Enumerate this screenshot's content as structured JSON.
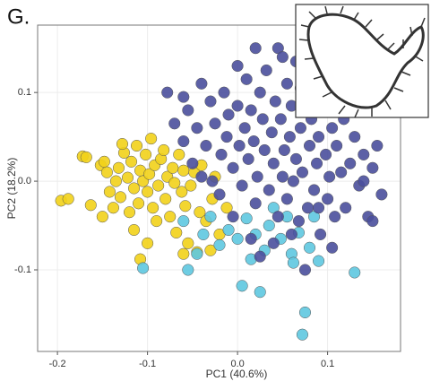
{
  "chart_data": {
    "type": "scatter",
    "title": "G.",
    "xlabel": "PC1 (40.6%)",
    "ylabel": "PC2 (18.2%)",
    "xlim": [
      -0.222,
      0.181
    ],
    "ylim": [
      -0.192,
      0.176
    ],
    "xticks": [
      -0.2,
      -0.1,
      {
        "value": 0,
        "label": "0.0"
      },
      0.1
    ],
    "yticks": [
      -0.1,
      {
        "value": 0,
        "label": "0.0"
      },
      0.1
    ],
    "grid": true,
    "series": [
      {
        "color": "#f2d21a",
        "x": [
          -0.196,
          -0.188,
          -0.172,
          -0.168,
          -0.163,
          -0.152,
          -0.148,
          -0.145,
          -0.142,
          -0.138,
          -0.135,
          -0.132,
          -0.13,
          -0.126,
          -0.122,
          -0.12,
          -0.118,
          -0.115,
          -0.112,
          -0.11,
          -0.108,
          -0.105,
          -0.102,
          -0.1,
          -0.098,
          -0.096,
          -0.094,
          -0.092,
          -0.09,
          -0.088,
          -0.085,
          -0.082,
          -0.08,
          -0.078,
          -0.075,
          -0.072,
          -0.07,
          -0.068,
          -0.065,
          -0.062,
          -0.06,
          -0.058,
          -0.055,
          -0.052,
          -0.048,
          -0.045,
          -0.042,
          -0.04,
          -0.035,
          -0.03,
          -0.028,
          -0.025,
          -0.108,
          -0.1,
          -0.115,
          -0.06,
          -0.15,
          -0.128,
          -0.02,
          -0.012
        ],
        "values": [
          -0.022,
          -0.02,
          0.028,
          0.027,
          -0.027,
          0.018,
          0.022,
          0.01,
          -0.012,
          -0.03,
          0,
          0.015,
          -0.018,
          0.032,
          0.004,
          -0.035,
          0.022,
          -0.008,
          0.04,
          -0.025,
          0.012,
          0,
          0.03,
          -0.012,
          0.008,
          0.048,
          -0.03,
          0.018,
          -0.045,
          -0.005,
          0.025,
          0.035,
          -0.02,
          0.005,
          -0.04,
          0.015,
          -0.002,
          -0.058,
          0.03,
          -0.012,
          0.012,
          -0.028,
          -0.07,
          -0.005,
          0.01,
          -0.08,
          -0.035,
          0.018,
          -0.045,
          -0.078,
          -0.02,
          0.005,
          -0.088,
          -0.07,
          -0.055,
          -0.082,
          -0.04,
          0.042,
          -0.06,
          -0.03
        ]
      },
      {
        "color": "#5ec8e0",
        "x": [
          -0.105,
          -0.055,
          -0.045,
          -0.038,
          -0.03,
          -0.02,
          -0.01,
          0,
          0.005,
          0.01,
          0.02,
          0.025,
          0.03,
          0.035,
          0.04,
          0.048,
          0.055,
          0.06,
          0.062,
          0.068,
          0.075,
          0.072,
          0.08,
          0.085,
          0.09,
          0.13,
          0.015,
          -0.06
        ],
        "values": [
          -0.098,
          -0.1,
          -0.082,
          -0.06,
          -0.04,
          -0.072,
          -0.055,
          -0.065,
          -0.118,
          -0.042,
          -0.06,
          -0.125,
          -0.078,
          -0.05,
          -0.03,
          -0.065,
          -0.04,
          -0.082,
          -0.092,
          -0.058,
          -0.148,
          -0.173,
          -0.075,
          -0.04,
          -0.09,
          -0.103,
          -0.088,
          -0.045
        ]
      },
      {
        "color": "#4a4f9c",
        "x": [
          -0.078,
          -0.07,
          -0.06,
          -0.055,
          -0.05,
          -0.045,
          -0.04,
          -0.035,
          -0.03,
          -0.028,
          -0.025,
          -0.02,
          -0.018,
          -0.015,
          -0.012,
          -0.01,
          -0.005,
          0,
          0.002,
          0.005,
          0.008,
          0.01,
          0.012,
          0.015,
          0.018,
          0.02,
          0.022,
          0.025,
          0.028,
          0.03,
          0.032,
          0.035,
          0.038,
          0.04,
          0.042,
          0.045,
          0.045,
          0.048,
          0.05,
          0.052,
          0.055,
          0.055,
          0.058,
          0.06,
          0.062,
          0.065,
          0.065,
          0.068,
          0.07,
          0.072,
          0.075,
          0.078,
          0.08,
          0.082,
          0.085,
          0.088,
          0.09,
          0.092,
          0.095,
          0.098,
          0.1,
          0.102,
          0.105,
          0.108,
          0.11,
          0.115,
          0.118,
          0.12,
          0.125,
          0.13,
          0.135,
          0.14,
          0.145,
          0.15,
          0.155,
          0.16,
          0.128,
          0.095,
          0.07,
          0.05,
          -0.005,
          0.015,
          0.025,
          0.04,
          0.06,
          0.075,
          0.09,
          0.02,
          0,
          -0.04,
          -0.06,
          0.11,
          0.14,
          0.15,
          0.105
        ],
        "values": [
          0.1,
          0.065,
          0.045,
          0.08,
          0.02,
          0.06,
          0.11,
          0.04,
          0.09,
          0,
          0.065,
          -0.015,
          0.03,
          0.1,
          0.05,
          0.075,
          0.015,
          0.085,
          0.04,
          -0.005,
          0.06,
          0.115,
          0.025,
          0.08,
          0.045,
          -0.025,
          0.005,
          0.1,
          0.07,
          0.035,
          0.125,
          -0.01,
          0.055,
          0.02,
          0.09,
          -0.04,
          0.15,
          0.07,
          0.005,
          0.035,
          0.11,
          -0.02,
          0.05,
          0.085,
          0,
          0.135,
          0.025,
          -0.045,
          0.06,
          0.01,
          0.095,
          -0.03,
          0.04,
          0.07,
          -0.01,
          0.02,
          0.05,
          -0.06,
          0.08,
          0.03,
          -0.02,
          0.005,
          0.06,
          -0.04,
          0.04,
          0.01,
          0.07,
          -0.03,
          0.02,
          0.05,
          -0.005,
          0.03,
          -0.04,
          0.015,
          0.04,
          -0.015,
          0.09,
          0.11,
          0.105,
          0.14,
          -0.04,
          -0.065,
          -0.085,
          -0.07,
          -0.06,
          -0.1,
          -0.03,
          0.15,
          0.13,
          0.005,
          0.095,
          0.1,
          0,
          -0.045,
          -0.075
        ]
      }
    ]
  }
}
